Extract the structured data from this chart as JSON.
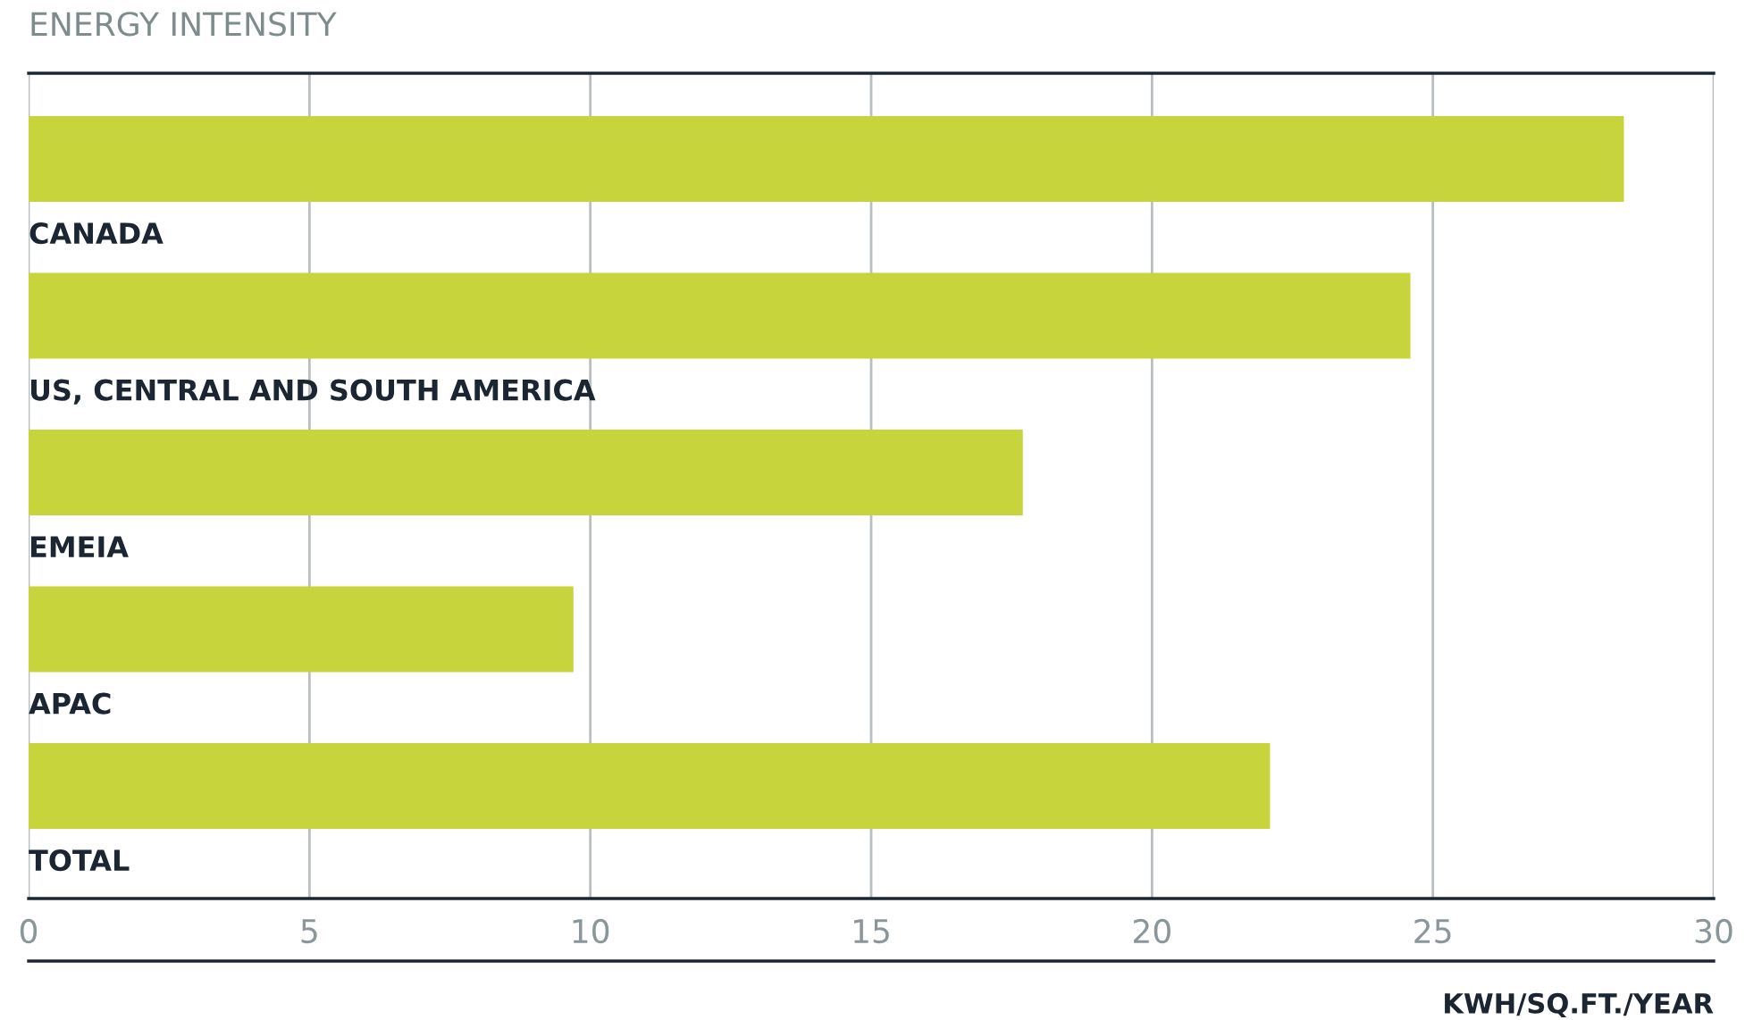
{
  "chart_data": {
    "type": "bar",
    "orientation": "horizontal",
    "title": "ENERGY INTENSITY",
    "xlabel": "KWH/SQ.FT./YEAR",
    "categories": [
      "CANADA",
      "US, CENTRAL AND SOUTH AMERICA",
      "EMEIA",
      "APAC",
      "TOTAL"
    ],
    "values": [
      28.4,
      24.6,
      17.7,
      9.7,
      22.1
    ],
    "color": "#c8d43c",
    "xlim": [
      0,
      30
    ],
    "xticks": [
      0,
      5,
      10,
      15,
      20,
      25,
      30
    ],
    "grid": "x",
    "legend": false
  }
}
